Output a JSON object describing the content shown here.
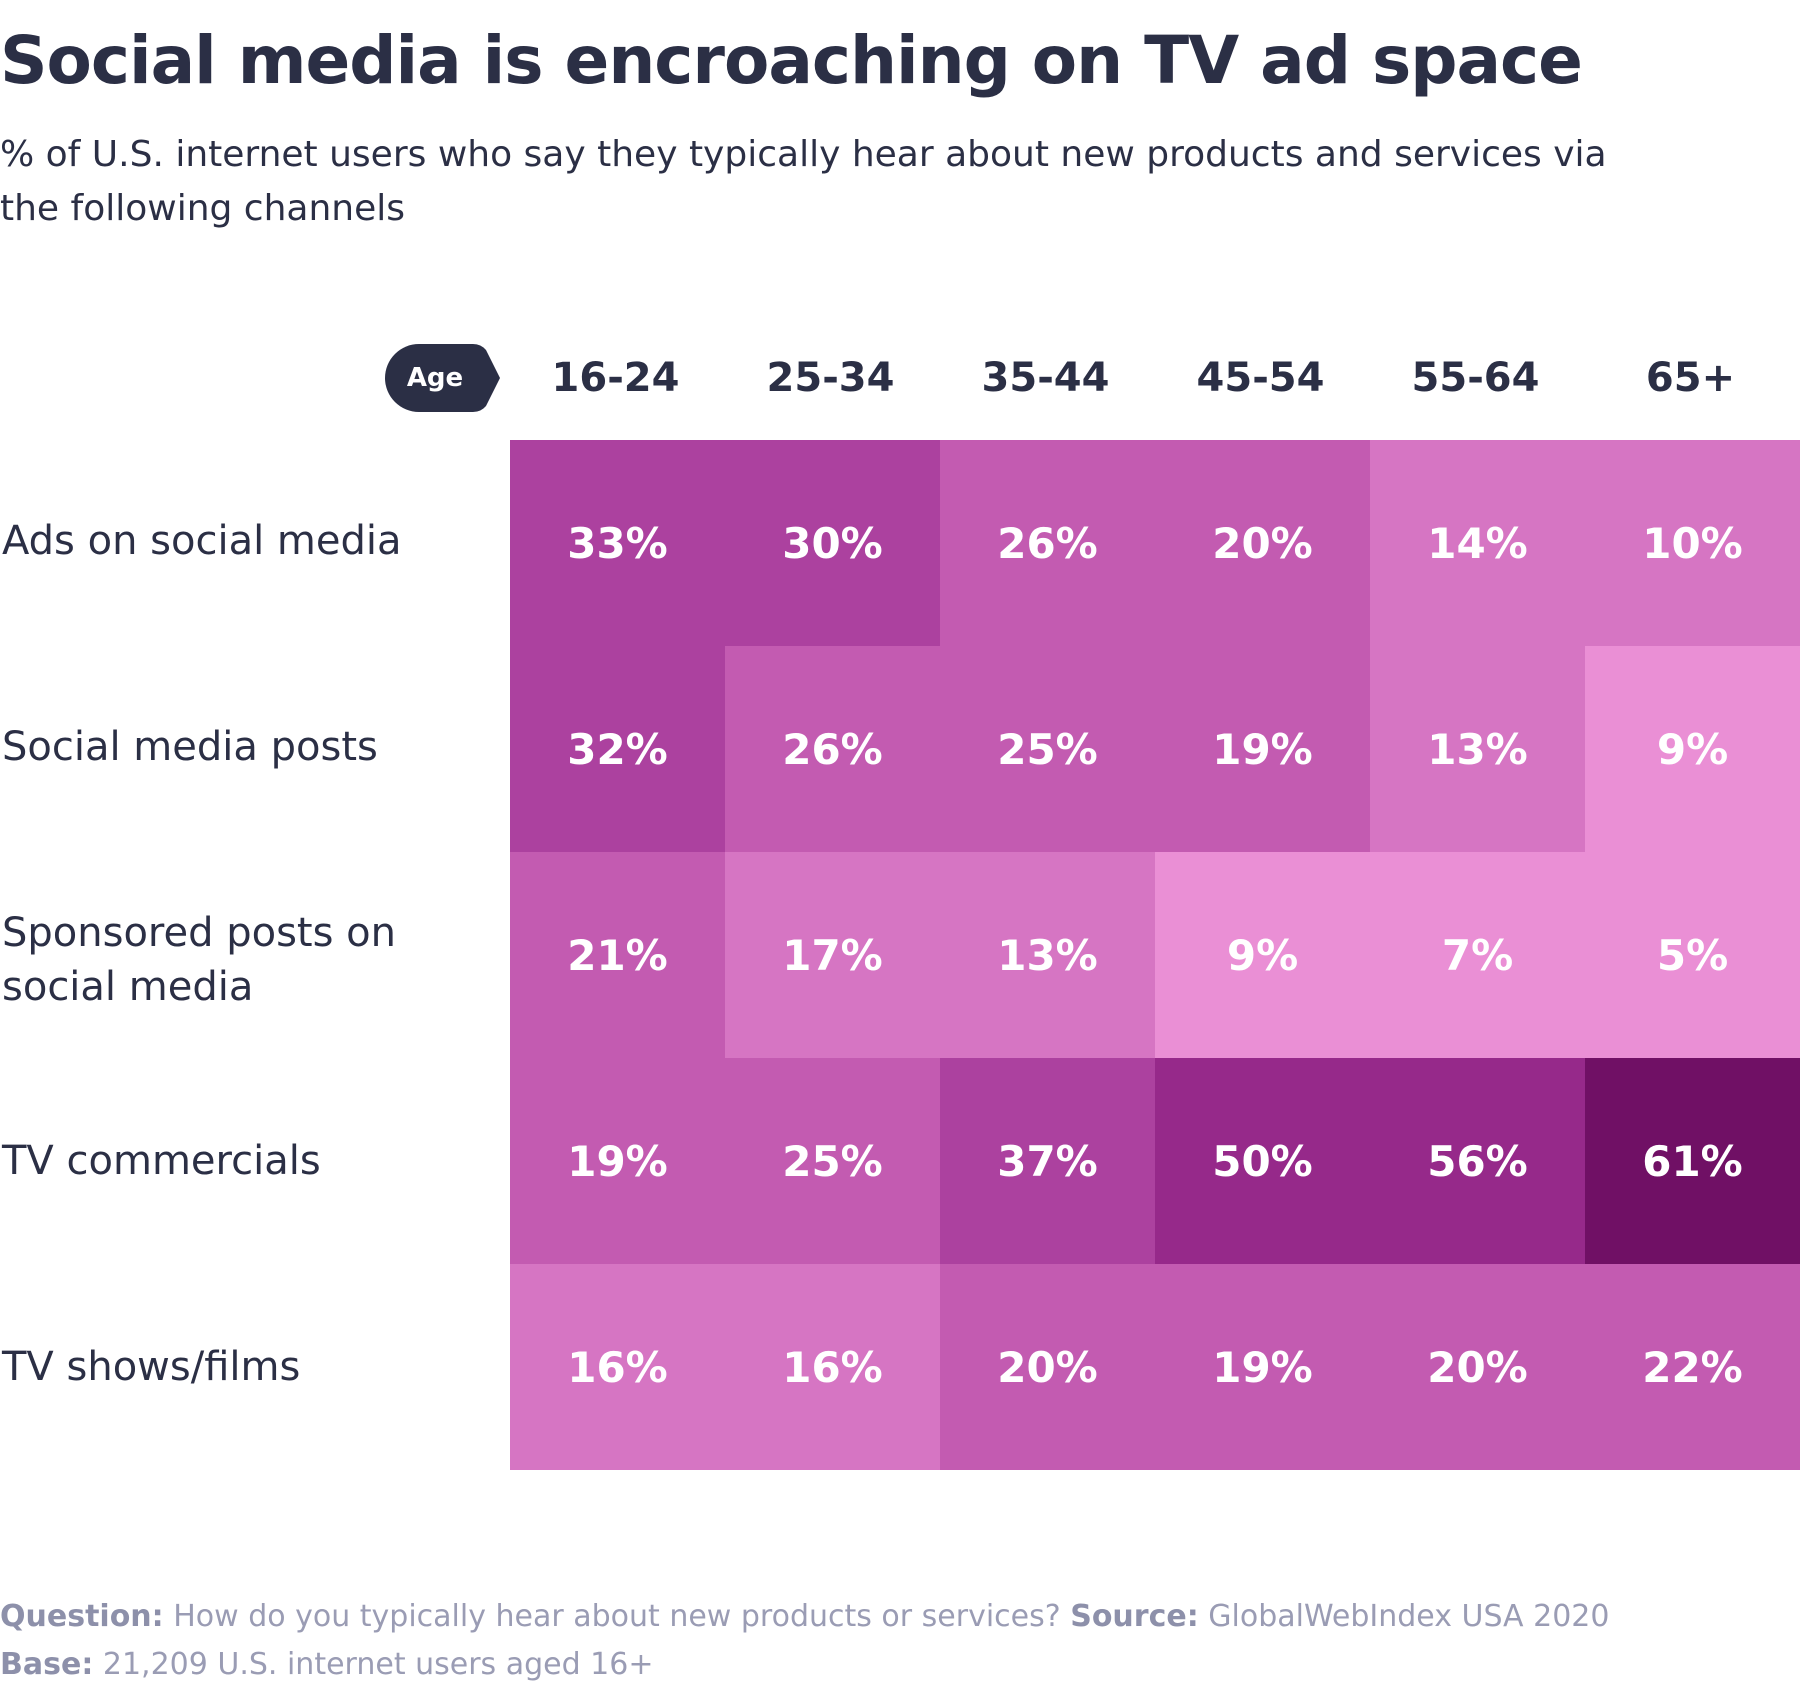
{
  "title": "Social media is encroaching on TV ad space",
  "subtitle": "% of U.S. internet users who say they typically hear about new products and services via the following channels",
  "age_tag": "Age",
  "footer": {
    "question_label": "Question:",
    "question_text": "How do you typically hear about new products or services?",
    "source_label": "Source:",
    "source_text": "GlobalWebIndex USA 2020",
    "base_label": "Base:",
    "base_text": "21,209 U.S. internet users aged 16+"
  },
  "colors": {
    "text": "#2b2f45",
    "footer": "#9a9cb4",
    "scale": [
      "#ea8fd5",
      "#d675c3",
      "#c35bb1",
      "#ac419f",
      "#96298a",
      "#701065"
    ]
  },
  "chart_data": {
    "type": "heatmap",
    "x_title": "Age",
    "columns": [
      "16-24",
      "25-34",
      "35-44",
      "45-54",
      "55-64",
      "65+"
    ],
    "rows": [
      "Ads on social media",
      "Social media posts",
      "Sponsored posts on social media",
      "TV commercials",
      "TV shows/films"
    ],
    "values": [
      [
        33,
        30,
        26,
        20,
        14,
        10
      ],
      [
        32,
        26,
        25,
        19,
        13,
        9
      ],
      [
        21,
        17,
        13,
        9,
        7,
        5
      ],
      [
        19,
        25,
        37,
        50,
        56,
        61
      ],
      [
        16,
        16,
        20,
        19,
        20,
        22
      ]
    ],
    "labels": [
      [
        "33%",
        "30%",
        "26%",
        "20%",
        "14%",
        "10%"
      ],
      [
        "32%",
        "26%",
        "25%",
        "19%",
        "13%",
        "9%"
      ],
      [
        "21%",
        "17%",
        "13%",
        "9%",
        "7%",
        "5%"
      ],
      [
        "19%",
        "25%",
        "37%",
        "50%",
        "56%",
        "61%"
      ],
      [
        "16%",
        "16%",
        "20%",
        "19%",
        "20%",
        "22%"
      ]
    ],
    "unit": "%"
  }
}
